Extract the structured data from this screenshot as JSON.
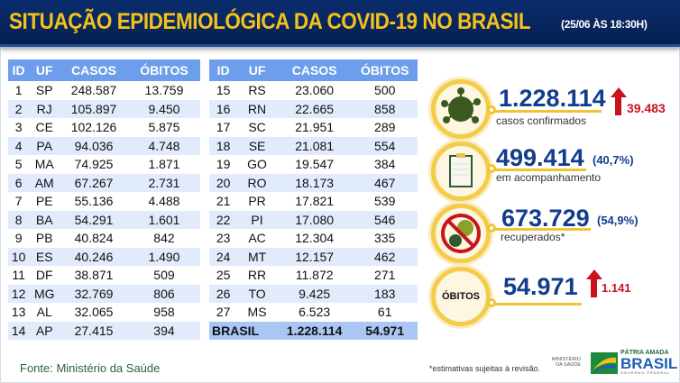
{
  "header": {
    "title": "SITUAÇÃO EPIDEMIOLÓGICA DA COVID-19 NO BRASIL",
    "subtitle": "(25/06 ÀS 18:30H)"
  },
  "table_headers": [
    "ID",
    "UF",
    "CASOS",
    "ÓBITOS"
  ],
  "table1": [
    [
      "1",
      "SP",
      "248.587",
      "13.759"
    ],
    [
      "2",
      "RJ",
      "105.897",
      "9.450"
    ],
    [
      "3",
      "CE",
      "102.126",
      "5.875"
    ],
    [
      "4",
      "PA",
      "94.036",
      "4.748"
    ],
    [
      "5",
      "MA",
      "74.925",
      "1.871"
    ],
    [
      "6",
      "AM",
      "67.267",
      "2.731"
    ],
    [
      "7",
      "PE",
      "55.136",
      "4.488"
    ],
    [
      "8",
      "BA",
      "54.291",
      "1.601"
    ],
    [
      "9",
      "PB",
      "40.824",
      "842"
    ],
    [
      "10",
      "ES",
      "40.246",
      "1.490"
    ],
    [
      "11",
      "DF",
      "38.871",
      "509"
    ],
    [
      "12",
      "MG",
      "32.769",
      "806"
    ],
    [
      "13",
      "AL",
      "32.065",
      "958"
    ],
    [
      "14",
      "AP",
      "27.415",
      "394"
    ]
  ],
  "table2": [
    [
      "15",
      "RS",
      "23.060",
      "500"
    ],
    [
      "16",
      "RN",
      "22.665",
      "858"
    ],
    [
      "17",
      "SC",
      "21.951",
      "289"
    ],
    [
      "18",
      "SE",
      "21.081",
      "554"
    ],
    [
      "19",
      "GO",
      "19.547",
      "384"
    ],
    [
      "20",
      "RO",
      "18.173",
      "467"
    ],
    [
      "21",
      "PR",
      "17.821",
      "539"
    ],
    [
      "22",
      "PI",
      "17.080",
      "546"
    ],
    [
      "23",
      "AC",
      "12.304",
      "335"
    ],
    [
      "24",
      "MT",
      "12.157",
      "462"
    ],
    [
      "25",
      "RR",
      "11.872",
      "271"
    ],
    [
      "26",
      "TO",
      "9.425",
      "183"
    ],
    [
      "27",
      "MS",
      "6.523",
      "61"
    ]
  ],
  "total": {
    "label": "BRASIL",
    "casos": "1.228.114",
    "obitos": "54.971"
  },
  "stats": {
    "confirmed": {
      "value": "1.228.114",
      "label": "casos confirmados",
      "increase": "39.483",
      "icon": "virus-icon"
    },
    "monitoring": {
      "value": "499.414",
      "pct": "(40,7%)",
      "label": "em acompanhamento",
      "icon": "clipboard-icon"
    },
    "recovered": {
      "value": "673.729",
      "pct": "(54,9%)",
      "label": "recuperados*",
      "icon": "no-virus-icon"
    },
    "deaths": {
      "badge": "ÓBITOS",
      "value": "54.971",
      "increase": "1.141"
    }
  },
  "footer": {
    "source": "Fonte: Ministério da Saúde",
    "note": "*estimativas sujeitas à revisão.",
    "ministry": "MINISTÉRIO DA SAÚDE",
    "brand_top": "PÁTRIA AMADA",
    "brand": "BRASIL",
    "brand_sub": "GOVERNO FEDERAL"
  },
  "colors": {
    "navy": "#0b2d6e",
    "yellow": "#f4c21b",
    "header_blue": "#6d9eeb",
    "red": "#c8141e"
  }
}
